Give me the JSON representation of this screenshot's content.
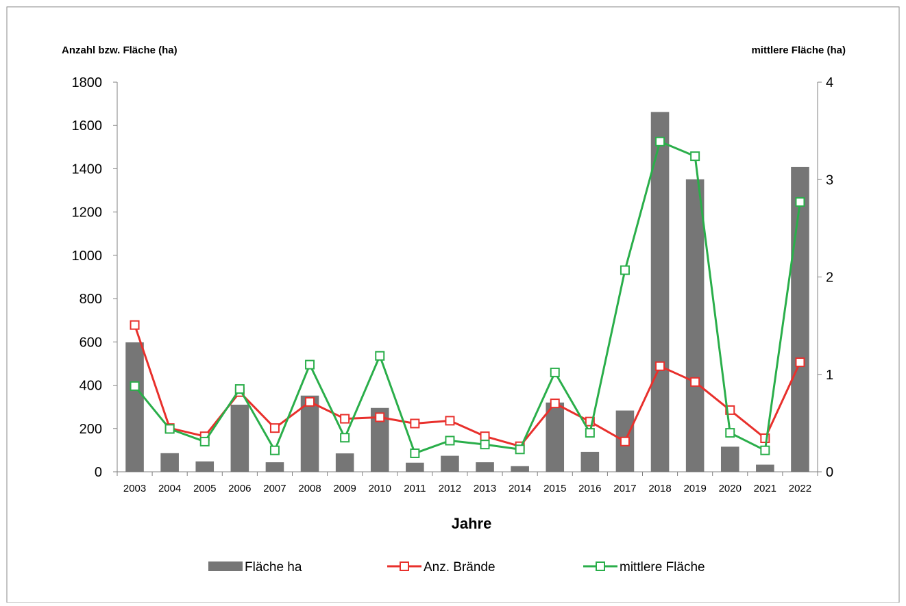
{
  "chart_data": {
    "type": "bar",
    "xlabel": "Jahre",
    "ylabel_left": "Anzahl bzw. Fläche (ha)",
    "ylabel_right": "mittlere Fläche (ha)",
    "ylim_left": [
      0,
      1800
    ],
    "ylim_right": [
      0,
      4
    ],
    "yticks_left": [
      "0",
      "200",
      "400",
      "600",
      "800",
      "1000",
      "1200",
      "1400",
      "1600",
      "1800"
    ],
    "yticks_right": [
      "0",
      "1",
      "2",
      "3",
      "4"
    ],
    "grid": false,
    "legend_position": "bottom",
    "categories": [
      "2003",
      "2004",
      "2005",
      "2006",
      "2007",
      "2008",
      "2009",
      "2010",
      "2011",
      "2012",
      "2013",
      "2014",
      "2015",
      "2016",
      "2017",
      "2018",
      "2019",
      "2020",
      "2021",
      "2022"
    ],
    "series": [
      {
        "name": "Fläche ha",
        "type": "bar",
        "axis": "left",
        "color": "#767676",
        "values": [
          598,
          86,
          48,
          310,
          44,
          352,
          85,
          295,
          42,
          74,
          44,
          26,
          320,
          92,
          283,
          1662,
          1351,
          116,
          33,
          1408
        ]
      },
      {
        "name": "Anz. Brände",
        "type": "line",
        "axis": "left",
        "color": "#e8302c",
        "values": [
          678,
          202,
          164,
          368,
          202,
          323,
          245,
          252,
          223,
          236,
          164,
          118,
          316,
          232,
          140,
          488,
          415,
          285,
          155,
          506
        ]
      },
      {
        "name": "mittlere Fläche",
        "type": "line",
        "axis": "right",
        "color": "#2aae4a",
        "values": [
          0.88,
          0.44,
          0.31,
          0.85,
          0.22,
          1.1,
          0.35,
          1.19,
          0.19,
          0.32,
          0.28,
          0.23,
          1.02,
          0.4,
          2.07,
          3.39,
          3.24,
          0.4,
          0.22,
          2.77
        ]
      }
    ]
  }
}
